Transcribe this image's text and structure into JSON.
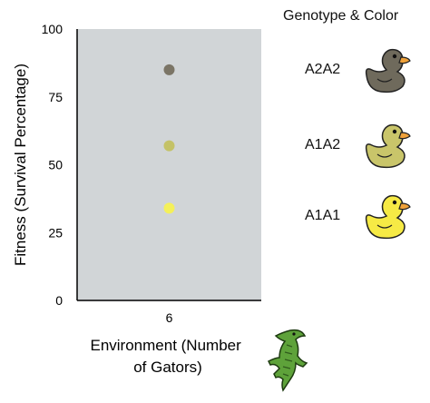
{
  "chart_data": {
    "type": "scatter",
    "xlabel": "Environment (Number of Gators)",
    "xlabel_lines": [
      "Environment (Number",
      "of Gators)"
    ],
    "ylabel": "Fitness (Survival Percentage)",
    "x_categories": [
      "6"
    ],
    "yticks": [
      "0",
      "25",
      "50",
      "75",
      "100"
    ],
    "ylim": [
      0,
      100
    ],
    "grid": false,
    "plot_background": "#d1d5d7",
    "series": [
      {
        "name": "A2A2",
        "x": "6",
        "y": 85,
        "color": "#7b7566"
      },
      {
        "name": "A1A2",
        "x": "6",
        "y": 57,
        "color": "#c4c267"
      },
      {
        "name": "A1A1",
        "x": "6",
        "y": 34,
        "color": "#f4f05a"
      }
    ]
  },
  "legend": {
    "title": "Genotype & Color",
    "placement": "right",
    "entries": [
      {
        "label": "A2A2",
        "duck_color": "#6f6a5c",
        "icon": "duck-icon"
      },
      {
        "label": "A1A2",
        "duck_color": "#c9c56a",
        "icon": "duck-icon"
      },
      {
        "label": "A1A1",
        "duck_color": "#f6ea45",
        "icon": "duck-icon"
      }
    ]
  },
  "gator": {
    "icon": "alligator-icon",
    "color": "#5ea23a"
  }
}
